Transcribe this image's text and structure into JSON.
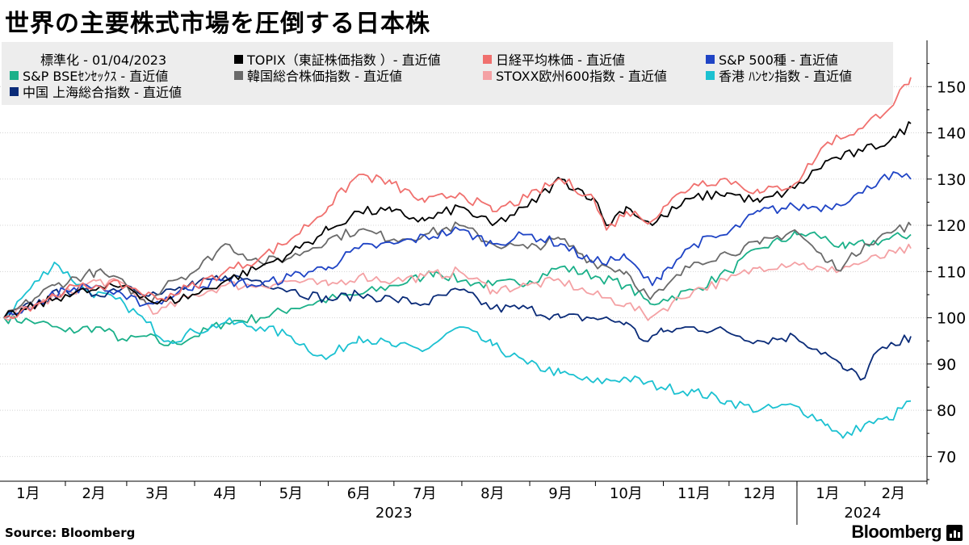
{
  "title": "世界の主要株式市場を圧倒する日本株",
  "source": "Source:  Bloomberg",
  "brand": "Bloomberg",
  "legend_header": "標準化  - 01/04/2023",
  "chart_data": {
    "type": "line",
    "x_start": "2023-01-04",
    "x_end": "2024-02-22",
    "ylim": [
      65,
      160
    ],
    "yticks": [
      70,
      80,
      90,
      100,
      110,
      120,
      130,
      140,
      150
    ],
    "xticks": [
      {
        "label": "1月",
        "date": "2023-01-15"
      },
      {
        "label": "2月",
        "date": "2023-02-14"
      },
      {
        "label": "3月",
        "date": "2023-03-15"
      },
      {
        "label": "4月",
        "date": "2023-04-15"
      },
      {
        "label": "5月",
        "date": "2023-05-15"
      },
      {
        "label": "6月",
        "date": "2023-06-15"
      },
      {
        "label": "7月",
        "date": "2023-07-15"
      },
      {
        "label": "8月",
        "date": "2023-08-15"
      },
      {
        "label": "9月",
        "date": "2023-09-15"
      },
      {
        "label": "10月",
        "date": "2023-10-15"
      },
      {
        "label": "11月",
        "date": "2023-11-15"
      },
      {
        "label": "12月",
        "date": "2023-12-15"
      },
      {
        "label": "1月",
        "date": "2024-01-15"
      },
      {
        "label": "2月",
        "date": "2024-02-14"
      }
    ],
    "year_labels": [
      {
        "label": "2023",
        "date": "2023-07-01"
      },
      {
        "label": "2024",
        "date": "2024-01-31"
      }
    ],
    "series": [
      {
        "name": "S&P BSEｾﾝｾｯｸｽ - 直近値",
        "color": "#1bb089",
        "points": [
          [
            "2023-01-04",
            100
          ],
          [
            "2023-01-20",
            99
          ],
          [
            "2023-02-01",
            97
          ],
          [
            "2023-02-15",
            98
          ],
          [
            "2023-03-01",
            95
          ],
          [
            "2023-03-10",
            96
          ],
          [
            "2023-03-20",
            94
          ],
          [
            "2023-04-01",
            96
          ],
          [
            "2023-04-15",
            99
          ],
          [
            "2023-05-01",
            100
          ],
          [
            "2023-05-15",
            102
          ],
          [
            "2023-06-01",
            104
          ],
          [
            "2023-06-15",
            105
          ],
          [
            "2023-07-01",
            107
          ],
          [
            "2023-07-15",
            109
          ],
          [
            "2023-07-20",
            110
          ],
          [
            "2023-08-01",
            108
          ],
          [
            "2023-08-15",
            107
          ],
          [
            "2023-09-01",
            108
          ],
          [
            "2023-09-15",
            111
          ],
          [
            "2023-10-01",
            109
          ],
          [
            "2023-10-15",
            107
          ],
          [
            "2023-10-26",
            103
          ],
          [
            "2023-11-01",
            104
          ],
          [
            "2023-11-15",
            106
          ],
          [
            "2023-12-01",
            110
          ],
          [
            "2023-12-15",
            115
          ],
          [
            "2024-01-01",
            118
          ],
          [
            "2024-01-10",
            118
          ],
          [
            "2024-01-23",
            115
          ],
          [
            "2024-02-01",
            116
          ],
          [
            "2024-02-12",
            117
          ],
          [
            "2024-02-22",
            118
          ]
        ]
      },
      {
        "name": "香港 ﾊﾝｾﾝ指数 - 直近値",
        "color": "#1bc1d1",
        "points": [
          [
            "2023-01-04",
            100
          ],
          [
            "2023-01-27",
            112
          ],
          [
            "2023-02-10",
            106
          ],
          [
            "2023-02-28",
            103
          ],
          [
            "2023-03-10",
            99
          ],
          [
            "2023-03-20",
            95
          ],
          [
            "2023-04-01",
            97
          ],
          [
            "2023-04-15",
            99
          ],
          [
            "2023-05-01",
            98
          ],
          [
            "2023-05-15",
            96
          ],
          [
            "2023-05-31",
            91
          ],
          [
            "2023-06-15",
            96
          ],
          [
            "2023-06-30",
            94
          ],
          [
            "2023-07-15",
            93
          ],
          [
            "2023-07-31",
            98
          ],
          [
            "2023-08-15",
            94
          ],
          [
            "2023-08-31",
            90
          ],
          [
            "2023-09-15",
            88
          ],
          [
            "2023-09-30",
            86
          ],
          [
            "2023-10-15",
            87
          ],
          [
            "2023-10-31",
            85
          ],
          [
            "2023-11-15",
            84
          ],
          [
            "2023-11-30",
            82
          ],
          [
            "2023-12-15",
            80
          ],
          [
            "2023-12-31",
            81
          ],
          [
            "2024-01-15",
            77
          ],
          [
            "2024-01-22",
            74
          ],
          [
            "2024-02-01",
            77
          ],
          [
            "2024-02-12",
            78
          ],
          [
            "2024-02-22",
            82
          ]
        ]
      },
      {
        "name": "中国 上海総合指数 - 直近値",
        "color": "#0a2b78",
        "points": [
          [
            "2023-01-04",
            100
          ],
          [
            "2023-02-01",
            106
          ],
          [
            "2023-02-15",
            105
          ],
          [
            "2023-03-01",
            107
          ],
          [
            "2023-03-15",
            105
          ],
          [
            "2023-04-01",
            107
          ],
          [
            "2023-04-15",
            109
          ],
          [
            "2023-05-01",
            108
          ],
          [
            "2023-05-15",
            106
          ],
          [
            "2023-06-01",
            104
          ],
          [
            "2023-06-15",
            105
          ],
          [
            "2023-07-01",
            104
          ],
          [
            "2023-07-15",
            103
          ],
          [
            "2023-07-31",
            106
          ],
          [
            "2023-08-15",
            102
          ],
          [
            "2023-08-31",
            102
          ],
          [
            "2023-09-15",
            100
          ],
          [
            "2023-09-30",
            100
          ],
          [
            "2023-10-15",
            99
          ],
          [
            "2023-10-23",
            95
          ],
          [
            "2023-11-01",
            97
          ],
          [
            "2023-11-15",
            98
          ],
          [
            "2023-11-30",
            97
          ],
          [
            "2023-12-15",
            95
          ],
          [
            "2023-12-31",
            96
          ],
          [
            "2024-01-15",
            92
          ],
          [
            "2024-01-22",
            89
          ],
          [
            "2024-02-01",
            87
          ],
          [
            "2024-02-05",
            92
          ],
          [
            "2024-02-15",
            94
          ],
          [
            "2024-02-22",
            96
          ]
        ]
      },
      {
        "name": "STOXX欧州600指数 - 直近値",
        "color": "#f4a1a4",
        "points": [
          [
            "2023-01-04",
            100
          ],
          [
            "2023-01-31",
            105
          ],
          [
            "2023-02-15",
            108
          ],
          [
            "2023-03-01",
            107
          ],
          [
            "2023-03-15",
            101
          ],
          [
            "2023-04-01",
            105
          ],
          [
            "2023-04-15",
            107
          ],
          [
            "2023-05-01",
            107
          ],
          [
            "2023-05-15",
            108
          ],
          [
            "2023-06-01",
            107
          ],
          [
            "2023-06-15",
            109
          ],
          [
            "2023-07-01",
            108
          ],
          [
            "2023-07-15",
            109
          ],
          [
            "2023-07-31",
            110
          ],
          [
            "2023-08-15",
            106
          ],
          [
            "2023-08-31",
            107
          ],
          [
            "2023-09-15",
            108
          ],
          [
            "2023-09-30",
            105
          ],
          [
            "2023-10-15",
            103
          ],
          [
            "2023-10-26",
            100
          ],
          [
            "2023-11-01",
            102
          ],
          [
            "2023-11-15",
            106
          ],
          [
            "2023-11-30",
            108
          ],
          [
            "2023-12-15",
            111
          ],
          [
            "2023-12-31",
            112
          ],
          [
            "2024-01-15",
            110
          ],
          [
            "2024-01-31",
            112
          ],
          [
            "2024-02-15",
            114
          ],
          [
            "2024-02-22",
            115
          ]
        ]
      },
      {
        "name": "韓国総合株価指数 - 直近値",
        "color": "#6a6a6a",
        "points": [
          [
            "2023-01-04",
            100
          ],
          [
            "2023-01-27",
            107
          ],
          [
            "2023-02-15",
            110
          ],
          [
            "2023-03-01",
            107
          ],
          [
            "2023-03-10",
            103
          ],
          [
            "2023-03-20",
            108
          ],
          [
            "2023-04-01",
            110
          ],
          [
            "2023-04-15",
            116
          ],
          [
            "2023-05-01",
            112
          ],
          [
            "2023-05-15",
            113
          ],
          [
            "2023-06-01",
            117
          ],
          [
            "2023-06-15",
            119
          ],
          [
            "2023-07-01",
            117
          ],
          [
            "2023-07-15",
            118
          ],
          [
            "2023-07-31",
            120
          ],
          [
            "2023-08-15",
            116
          ],
          [
            "2023-08-31",
            115
          ],
          [
            "2023-09-15",
            117
          ],
          [
            "2023-09-30",
            112
          ],
          [
            "2023-10-15",
            110
          ],
          [
            "2023-10-26",
            104
          ],
          [
            "2023-11-01",
            106
          ],
          [
            "2023-11-15",
            112
          ],
          [
            "2023-11-30",
            114
          ],
          [
            "2023-12-15",
            116
          ],
          [
            "2023-12-31",
            119
          ],
          [
            "2024-01-15",
            112
          ],
          [
            "2024-01-22",
            111
          ],
          [
            "2024-02-01",
            116
          ],
          [
            "2024-02-15",
            119
          ],
          [
            "2024-02-22",
            120
          ]
        ]
      },
      {
        "name": "S&P 500種 - 直近値",
        "color": "#1f44c5",
        "points": [
          [
            "2023-01-04",
            100
          ],
          [
            "2023-02-01",
            106
          ],
          [
            "2023-02-15",
            107
          ],
          [
            "2023-03-01",
            104
          ],
          [
            "2023-03-13",
            103
          ],
          [
            "2023-04-01",
            107
          ],
          [
            "2023-04-15",
            108
          ],
          [
            "2023-05-01",
            107
          ],
          [
            "2023-05-15",
            109
          ],
          [
            "2023-06-01",
            111
          ],
          [
            "2023-06-15",
            115
          ],
          [
            "2023-07-01",
            116
          ],
          [
            "2023-07-31",
            119
          ],
          [
            "2023-08-15",
            116
          ],
          [
            "2023-08-31",
            118
          ],
          [
            "2023-09-15",
            116
          ],
          [
            "2023-09-30",
            112
          ],
          [
            "2023-10-15",
            113
          ],
          [
            "2023-10-27",
            107
          ],
          [
            "2023-11-01",
            110
          ],
          [
            "2023-11-15",
            116
          ],
          [
            "2023-11-30",
            118
          ],
          [
            "2023-12-15",
            123
          ],
          [
            "2023-12-31",
            124
          ],
          [
            "2024-01-15",
            124
          ],
          [
            "2024-01-31",
            127
          ],
          [
            "2024-02-10",
            131
          ],
          [
            "2024-02-22",
            130
          ]
        ]
      },
      {
        "name": "TOPIX（東証株価指数 ）- 直近値",
        "color": "#000000",
        "points": [
          [
            "2023-01-04",
            100
          ],
          [
            "2023-02-01",
            105
          ],
          [
            "2023-02-15",
            106
          ],
          [
            "2023-03-01",
            107
          ],
          [
            "2023-03-15",
            103
          ],
          [
            "2023-04-01",
            105
          ],
          [
            "2023-04-15",
            108
          ],
          [
            "2023-05-01",
            111
          ],
          [
            "2023-05-15",
            114
          ],
          [
            "2023-06-01",
            119
          ],
          [
            "2023-06-15",
            123
          ],
          [
            "2023-06-30",
            123
          ],
          [
            "2023-07-15",
            121
          ],
          [
            "2023-07-31",
            124
          ],
          [
            "2023-08-15",
            120
          ],
          [
            "2023-08-31",
            124
          ],
          [
            "2023-09-15",
            130
          ],
          [
            "2023-09-30",
            126
          ],
          [
            "2023-10-06",
            120
          ],
          [
            "2023-10-15",
            124
          ],
          [
            "2023-10-27",
            120
          ],
          [
            "2023-11-01",
            122
          ],
          [
            "2023-11-15",
            126
          ],
          [
            "2023-11-30",
            127
          ],
          [
            "2023-12-15",
            125
          ],
          [
            "2023-12-31",
            128
          ],
          [
            "2024-01-15",
            134
          ],
          [
            "2024-01-31",
            136
          ],
          [
            "2024-02-15",
            139
          ],
          [
            "2024-02-22",
            142
          ]
        ]
      },
      {
        "name": "日経平均株価 - 直近値",
        "color": "#f0706e",
        "points": [
          [
            "2023-01-04",
            100
          ],
          [
            "2023-02-01",
            106
          ],
          [
            "2023-02-15",
            107
          ],
          [
            "2023-03-01",
            107
          ],
          [
            "2023-03-15",
            104
          ],
          [
            "2023-04-01",
            107
          ],
          [
            "2023-04-15",
            110
          ],
          [
            "2023-05-01",
            113
          ],
          [
            "2023-05-15",
            117
          ],
          [
            "2023-06-01",
            124
          ],
          [
            "2023-06-15",
            131
          ],
          [
            "2023-06-30",
            129
          ],
          [
            "2023-07-15",
            125
          ],
          [
            "2023-07-31",
            127
          ],
          [
            "2023-08-15",
            123
          ],
          [
            "2023-08-31",
            126
          ],
          [
            "2023-09-15",
            130
          ],
          [
            "2023-09-30",
            126
          ],
          [
            "2023-10-06",
            119
          ],
          [
            "2023-10-15",
            123
          ],
          [
            "2023-10-27",
            121
          ],
          [
            "2023-11-01",
            124
          ],
          [
            "2023-11-15",
            129
          ],
          [
            "2023-11-30",
            130
          ],
          [
            "2023-12-15",
            127
          ],
          [
            "2023-12-31",
            129
          ],
          [
            "2024-01-15",
            138
          ],
          [
            "2024-01-31",
            141
          ],
          [
            "2024-02-15",
            147
          ],
          [
            "2024-02-22",
            152
          ]
        ]
      }
    ]
  },
  "legend": [
    {
      "label": "TOPIX（東証株価指数 ）- 直近値",
      "color": "#000000"
    },
    {
      "label": "日経平均株価  - 直近値",
      "color": "#f0706e"
    },
    {
      "label": "S&P 500種 - 直近値",
      "color": "#1f44c5"
    },
    {
      "label": "S&P BSEｾﾝｾｯｸｽ - 直近値",
      "color": "#1bb089"
    },
    {
      "label": "韓国総合株価指数  - 直近値",
      "color": "#6a6a6a"
    },
    {
      "label": "STOXX欧州600指数 - 直近値",
      "color": "#f4a1a4"
    },
    {
      "label": "香港 ﾊﾝｾﾝ指数 - 直近値",
      "color": "#1bc1d1"
    },
    {
      "label": "中国 上海総合指数  - 直近値",
      "color": "#0a2b78"
    }
  ]
}
